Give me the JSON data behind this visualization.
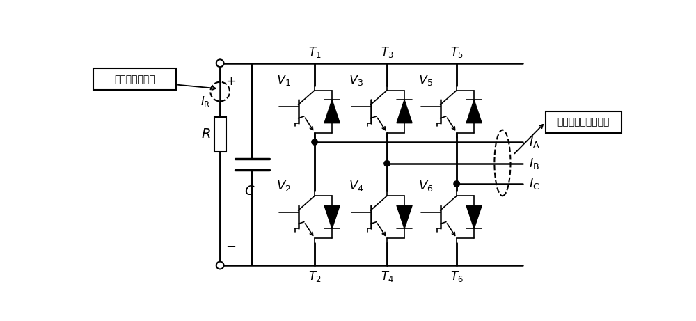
{
  "bg_color": "#ffffff",
  "labels": {
    "dc_label": "直流侧负载电流",
    "ac_label": "交流侧三相输入电流",
    "IR": "$I_{\\mathrm{R}}$",
    "R": "$R$",
    "C": "$C$",
    "IA": "$I_{\\mathrm{A}}$",
    "IB": "$I_{\\mathrm{B}}$",
    "IC": "$I_{\\mathrm{C}}$",
    "T1": "$T_{1}$",
    "T2": "$T_{2}$",
    "T3": "$T_{3}$",
    "T4": "$T_{4}$",
    "T5": "$T_{5}$",
    "T6": "$T_{6}$",
    "V1": "$V_{1}$",
    "V2": "$V_{2}$",
    "V3": "$V_{3}$",
    "V4": "$V_{4}$",
    "V5": "$V_{5}$",
    "V6": "$V_{6}$",
    "plus": "+",
    "minus": "−"
  }
}
